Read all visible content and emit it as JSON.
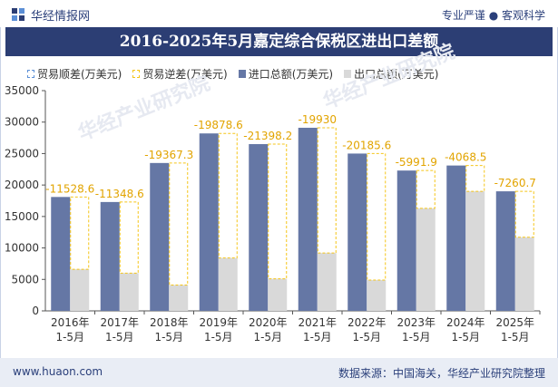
{
  "header": {
    "brand": "华经情报网",
    "slogan": "专业严谨 ● 客观科学"
  },
  "watermark": "华经产业研究院",
  "footer": {
    "url": "www.huaon.com",
    "source": "数据来源：中国海关，华经产业研究院整理"
  },
  "colors": {
    "import": "#6577a5",
    "export": "#d9d9d9",
    "surplus": "#5b8fd6",
    "deficit": "#f5c518",
    "title_bg": "#2c3e74"
  },
  "chart_data": {
    "type": "bar",
    "title": "2016-2025年5月嘉定综合保税区进出口差额",
    "categories": [
      "2016年\n1-5月",
      "2017年\n1-5月",
      "2018年\n1-5月",
      "2019年\n1-5月",
      "2020年\n1-5月",
      "2021年\n1-5月",
      "2022年\n1-5月",
      "2023年\n1-5月",
      "2024年\n1-5月",
      "2025年\n1-5月"
    ],
    "series": [
      {
        "name": "贸易顺差(万美元)",
        "values": [
          0,
          0,
          0,
          0,
          0,
          0,
          0,
          0,
          0,
          0
        ]
      },
      {
        "name": "贸易逆差(万美元)",
        "values": [
          -11528.6,
          -11348.6,
          -19367.3,
          -19878.6,
          -21398.2,
          -19930,
          -20185.6,
          -5991.9,
          -4068.5,
          -7260.7
        ]
      },
      {
        "name": "进口总额(万美元)",
        "values": [
          18100,
          17300,
          23500,
          28200,
          26500,
          29100,
          25000,
          22300,
          23100,
          19000
        ]
      },
      {
        "name": "出口总额(万美元)",
        "values": [
          6600,
          6000,
          4100,
          8400,
          5100,
          9200,
          4900,
          16300,
          19000,
          11700
        ]
      }
    ],
    "data_labels": [
      "-11528.6",
      "-11348.6",
      "-19367.3",
      "-19878.6",
      "-21398.2",
      "-19930",
      "-20185.6",
      "-5991.9",
      "-4068.5",
      "-7260.7"
    ],
    "ylim": [
      0,
      35000
    ],
    "yticks": [
      0,
      5000,
      10000,
      15000,
      20000,
      25000,
      30000,
      35000
    ],
    "grid": false,
    "legend_position": "top-left"
  }
}
